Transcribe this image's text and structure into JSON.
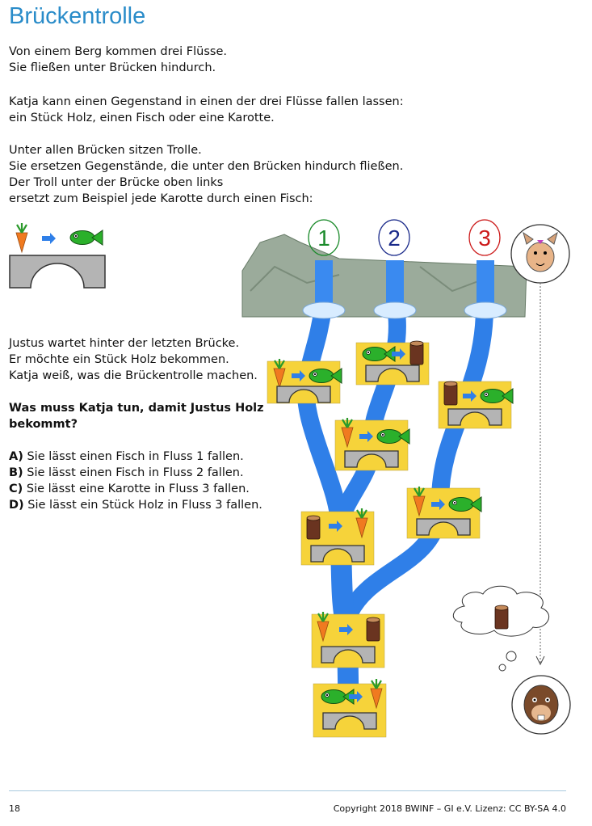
{
  "title": "Brückentrolle",
  "intro": [
    "Von einem Berg kommen drei Flüsse.",
    "Sie fließen unter Brücken hindurch."
  ],
  "para2": [
    "Katja kann einen Gegenstand in einen der drei Flüsse fallen lassen:",
    "ein Stück Holz, einen Fisch oder eine Karotte."
  ],
  "para3": [
    "Unter allen Brücken sitzen Trolle.",
    "Sie ersetzen Gegenstände, die unter den Brücken hindurch fließen.",
    "Der Troll unter der Brücke oben links",
    "ersetzt zum Beispiel jede Karotte durch einen Fisch:"
  ],
  "para4": [
    "Justus wartet hinter der letzten Brücke.",
    "Er möchte ein Stück Holz bekommen.",
    "Katja weiß, was die Brückentrolle machen."
  ],
  "question": [
    "Was muss Katja tun, damit Justus Holz",
    "bekommt?"
  ],
  "answers": [
    {
      "letter": "A)",
      "text": " Sie lässt einen Fisch in Fluss 1 fallen."
    },
    {
      "letter": "B)",
      "text": " Sie lässt einen Fisch in Fluss 2 fallen."
    },
    {
      "letter": "C)",
      "text": " Sie lässt eine Karotte in Fluss 3 fallen."
    },
    {
      "letter": "D)",
      "text": " Sie lässt ein Stück Holz in Fluss 3 fallen."
    }
  ],
  "rivers": [
    "1",
    "2",
    "3"
  ],
  "river_colors": [
    "#1a8a2a",
    "#1a2a8a",
    "#cc1a1a"
  ],
  "page_number": "18",
  "copyright": "Copyright 2018 BWINF – GI e.V. Lizenz: CC BY-SA 4.0",
  "colors": {
    "title": "#2a8cc9",
    "river": "#2f7fe8",
    "bridge_bg": "#f6d33a",
    "bridge": "#b4b4b4",
    "mountain": "#9bab9b",
    "fish": "#2bb02b",
    "carrot": "#f07a20",
    "wood": "#5a2e1a",
    "arrow": "#2f7fe8"
  },
  "bridges": [
    {
      "from": "carrot-icon",
      "to": "fish-icon"
    },
    {
      "from": "fish-icon",
      "to": "wood-icon"
    },
    {
      "from": "wood-icon",
      "to": "fish-icon"
    },
    {
      "from": "carrot-icon",
      "to": "fish-icon"
    },
    {
      "from": "carrot-icon",
      "to": "fish-icon"
    },
    {
      "from": "wood-icon",
      "to": "carrot-icon"
    },
    {
      "from": "carrot-icon",
      "to": "wood-icon"
    },
    {
      "from": "fish-icon",
      "to": "carrot-icon"
    }
  ]
}
